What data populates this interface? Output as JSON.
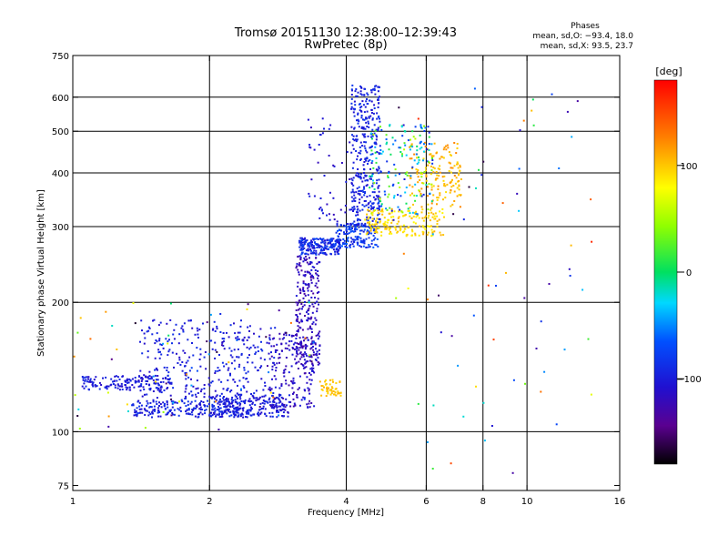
{
  "chart_data": {
    "type": "scatter",
    "title": "Tromsø 20151130 12:38:00–12:39:43",
    "subtitle": "RwPretec (8p)",
    "stats": {
      "heading": "Phases",
      "line_o": "mean, sd,O: −93.4, 18.0",
      "line_x": "mean, sd,X:  93.5, 23.7"
    },
    "xlabel": "Frequency [MHz]",
    "ylabel": "Stationary phase Virtual Height [km]",
    "x_scale": "log",
    "y_scale": "log",
    "xlim": [
      1,
      16
    ],
    "ylim": [
      73,
      750
    ],
    "x_ticks": [
      1,
      2,
      4,
      6,
      8,
      10,
      16
    ],
    "x_tick_labels": [
      "1",
      "2",
      "4",
      "6",
      "8",
      "10",
      "16"
    ],
    "x_gridlines": [
      2,
      4,
      6,
      8,
      10
    ],
    "y_ticks": [
      75,
      100,
      200,
      300,
      400,
      500,
      600,
      750
    ],
    "y_tick_labels": [
      "75",
      "100",
      "200",
      "300",
      "400",
      "500",
      "600",
      "750"
    ],
    "y_gridlines": [
      100,
      200,
      300,
      400,
      500,
      600
    ],
    "grid": true,
    "colorbar": {
      "label": "[deg]",
      "range": [
        -180,
        180
      ],
      "ticks": [
        100,
        0,
        -100
      ],
      "tick_labels": [
        "100",
        "0",
        "−100"
      ]
    },
    "clusters": [
      {
        "x": [
          1.05,
          1.65
        ],
        "y": [
          125,
          135
        ],
        "phase": [
          -115,
          -85
        ],
        "n": 160
      },
      {
        "x": [
          1.35,
          2.45
        ],
        "y": [
          108,
          118
        ],
        "phase": [
          -110,
          -80
        ],
        "n": 240
      },
      {
        "x": [
          2.0,
          3.0
        ],
        "y": [
          108,
          122
        ],
        "phase": [
          -115,
          -85
        ],
        "n": 200
      },
      {
        "x": [
          1.4,
          2.8
        ],
        "y": [
          118,
          182
        ],
        "phase": [
          -115,
          -85
        ],
        "n": 330
      },
      {
        "x": [
          2.7,
          3.4
        ],
        "y": [
          112,
          170
        ],
        "phase": [
          -130,
          -100
        ],
        "n": 160
      },
      {
        "x": [
          3.1,
          3.5
        ],
        "y": [
          140,
          260
        ],
        "phase": [
          -135,
          -100
        ],
        "n": 260
      },
      {
        "x": [
          3.15,
          3.9
        ],
        "y": [
          258,
          282
        ],
        "phase": [
          -110,
          -70
        ],
        "n": 200
      },
      {
        "x": [
          3.8,
          4.7
        ],
        "y": [
          268,
          305
        ],
        "phase": [
          -100,
          -60
        ],
        "n": 160
      },
      {
        "x": [
          4.1,
          4.75
        ],
        "y": [
          300,
          640
        ],
        "phase": [
          -110,
          -80
        ],
        "n": 340
      },
      {
        "x": [
          4.4,
          6.6
        ],
        "y": [
          285,
          330
        ],
        "phase": [
          80,
          110
        ],
        "n": 180
      },
      {
        "x": [
          5.5,
          7.2
        ],
        "y": [
          330,
          470
        ],
        "phase": [
          90,
          125
        ],
        "n": 160
      },
      {
        "x": [
          4.5,
          6.2
        ],
        "y": [
          320,
          520
        ],
        "phase": [
          -110,
          60
        ],
        "n": 180
      },
      {
        "x": [
          3.5,
          3.9
        ],
        "y": [
          120,
          132
        ],
        "phase": [
          90,
          110
        ],
        "n": 50
      },
      {
        "x": [
          1.0,
          3.4
        ],
        "y": [
          100,
          200
        ],
        "phase": [
          -170,
          140
        ],
        "n": 70
      },
      {
        "x": [
          3.3,
          4.3
        ],
        "y": [
          300,
          540
        ],
        "phase": [
          -120,
          -90
        ],
        "n": 60
      },
      {
        "x": [
          5.0,
          14.0
        ],
        "y": [
          80,
          660
        ],
        "phase": [
          -170,
          170
        ],
        "n": 70
      }
    ]
  }
}
